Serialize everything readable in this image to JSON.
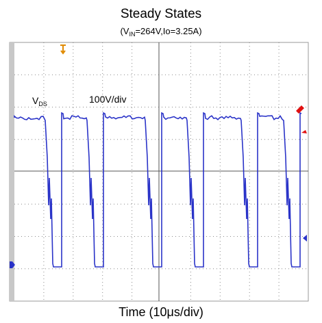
{
  "title": "Steady States",
  "subtitle": {
    "prefix": "(V",
    "subscript": "IN",
    "suffix": "=264V,Io=3.25A)"
  },
  "trace_label": {
    "text": "V",
    "subscript": "DS"
  },
  "scale_label": "100V/div",
  "x_label": "Time (10μs/div)"
}
